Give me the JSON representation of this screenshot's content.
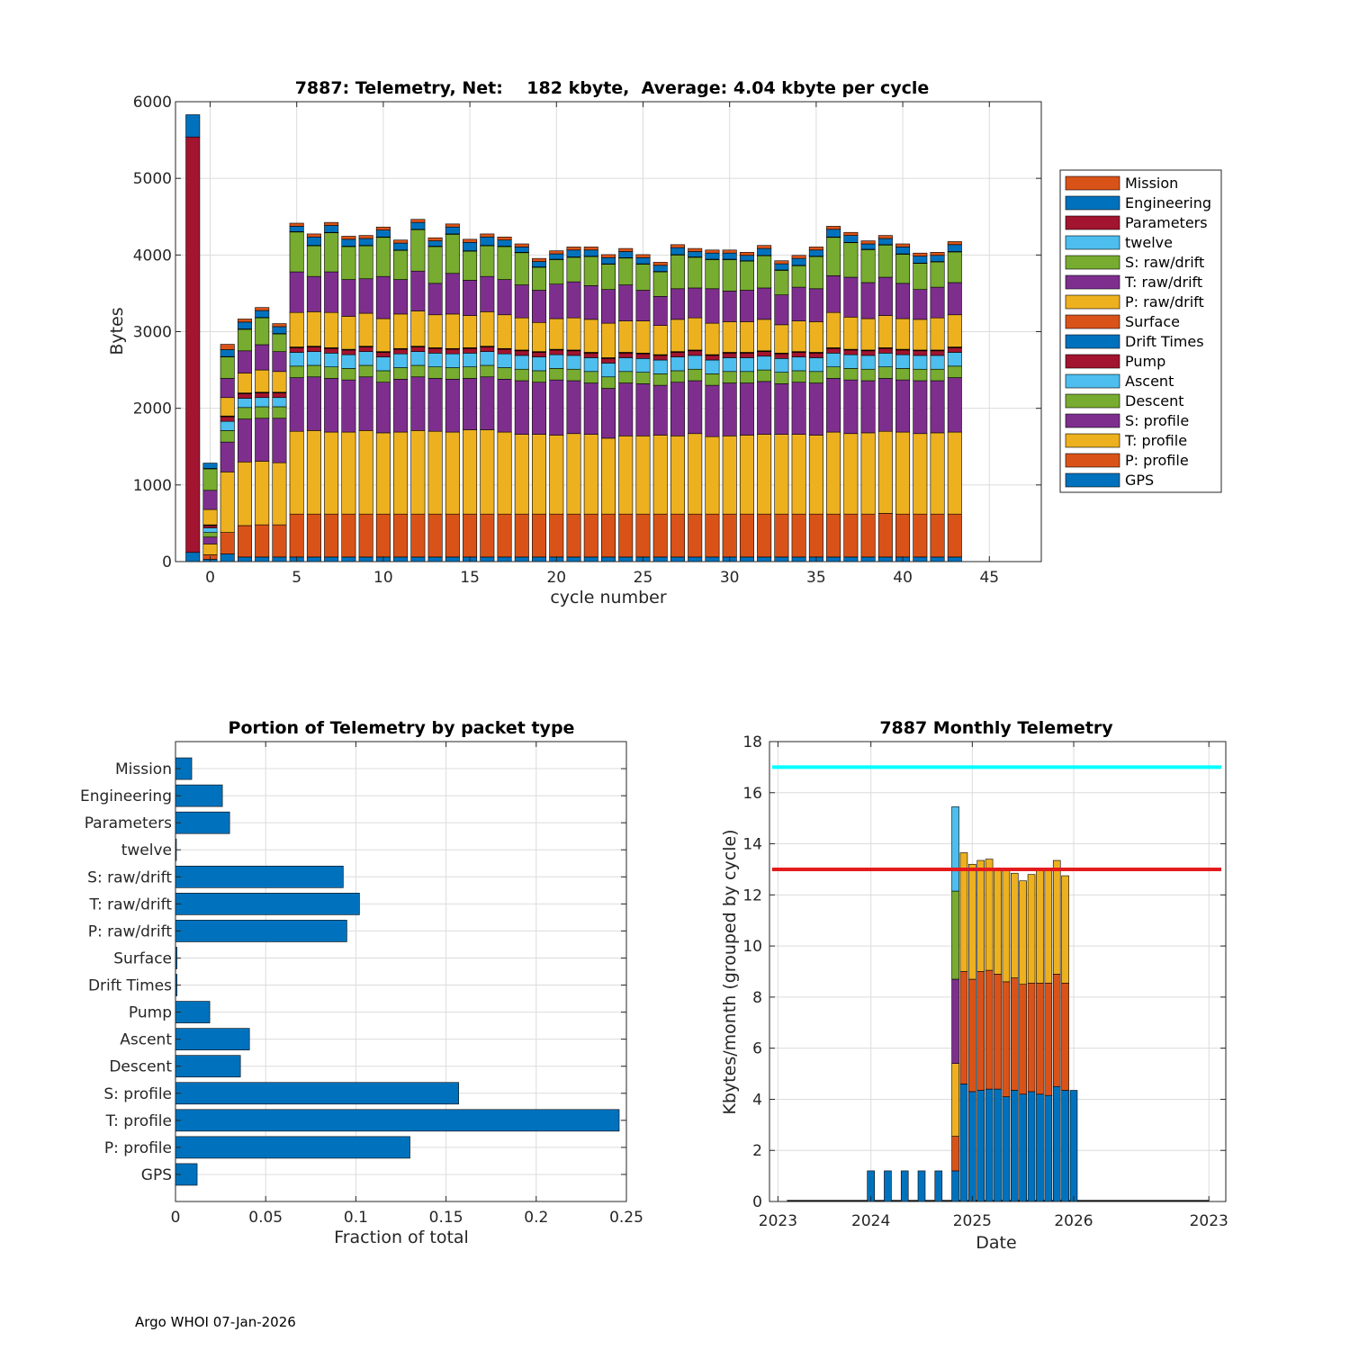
{
  "footer": "Argo WHOI 07-Jan-2026",
  "colors": {
    "Mission": "#D95319",
    "Engineering": "#0072BD",
    "Parameters": "#A2142F",
    "twelve": "#4DBEEE",
    "S: raw/drift": "#77AC30",
    "T: raw/drift": "#7E2F8E",
    "P: raw/drift": "#EDB120",
    "Surface": "#D95319",
    "Drift Times": "#0072BD",
    "Pump": "#A2142F",
    "Ascent": "#4DBEEE",
    "Descent": "#77AC30",
    "S: profile": "#7E2F8E",
    "T: profile": "#EDB120",
    "P: profile": "#D95319",
    "GPS": "#0072BD",
    "bar": "#0072BD",
    "cyan_line": "#00FFFF",
    "red_line": "#E41A1C"
  },
  "chart_data": [
    {
      "type": "bar",
      "stacked": true,
      "title": "7887: Telemetry, Net:    182 kbyte,  Average: 4.04 kbyte per cycle",
      "xlabel": "cycle number",
      "ylabel": "Bytes",
      "xlim": [
        -2,
        48
      ],
      "ylim": [
        0,
        6000
      ],
      "xticks": [
        0,
        5,
        10,
        15,
        20,
        25,
        30,
        35,
        40,
        45
      ],
      "yticks": [
        0,
        1000,
        2000,
        3000,
        4000,
        5000,
        6000
      ],
      "legend_location": "outside-right",
      "legend": [
        "Mission",
        "Engineering",
        "Parameters",
        "twelve",
        "S: raw/drift",
        "T: raw/drift",
        "P: raw/drift",
        "Surface",
        "Drift Times",
        "Pump",
        "Ascent",
        "Descent",
        "S: profile",
        "T: profile",
        "P: profile",
        "GPS"
      ],
      "stack_order": [
        "GPS",
        "P: profile",
        "T: profile",
        "S: profile",
        "Descent",
        "Ascent",
        "Pump",
        "Drift Times",
        "Surface",
        "P: raw/drift",
        "T: raw/drift",
        "S: raw/drift",
        "twelve",
        "Parameters",
        "Engineering",
        "Mission"
      ],
      "cycles": [
        -1,
        0,
        1,
        2,
        3,
        4,
        5,
        6,
        7,
        8,
        9,
        10,
        11,
        12,
        13,
        14,
        15,
        16,
        17,
        18,
        19,
        20,
        21,
        22,
        23,
        24,
        25,
        26,
        27,
        28,
        29,
        30,
        31,
        32,
        33,
        34,
        35,
        36,
        37,
        38,
        39,
        40,
        41,
        42,
        43
      ],
      "segments": {
        "GPS": [
          120,
          30,
          100,
          60,
          60,
          60,
          60,
          60,
          60,
          60,
          60,
          60,
          60,
          60,
          60,
          60,
          60,
          60,
          60,
          60,
          60,
          60,
          60,
          60,
          60,
          60,
          60,
          60,
          60,
          60,
          60,
          60,
          60,
          60,
          60,
          60,
          60,
          60,
          60,
          60,
          60,
          60,
          60,
          60,
          60
        ],
        "P: profile": [
          0,
          60,
          280,
          410,
          420,
          420,
          560,
          560,
          560,
          560,
          560,
          560,
          560,
          560,
          560,
          560,
          560,
          560,
          560,
          560,
          560,
          560,
          560,
          560,
          560,
          560,
          560,
          560,
          560,
          560,
          560,
          560,
          560,
          560,
          560,
          560,
          560,
          560,
          560,
          560,
          570,
          560,
          560,
          560,
          560
        ],
        "T: profile": [
          0,
          140,
          790,
          830,
          830,
          810,
          1080,
          1090,
          1070,
          1070,
          1090,
          1060,
          1070,
          1090,
          1080,
          1070,
          1100,
          1100,
          1070,
          1040,
          1040,
          1030,
          1050,
          1040,
          990,
          1020,
          1020,
          1030,
          1020,
          1050,
          1010,
          1020,
          1030,
          1040,
          1040,
          1040,
          1030,
          1070,
          1050,
          1060,
          1070,
          1070,
          1050,
          1060,
          1070
        ],
        "S: profile": [
          0,
          90,
          390,
          560,
          560,
          580,
          700,
          700,
          700,
          680,
          700,
          660,
          690,
          700,
          690,
          690,
          670,
          690,
          690,
          700,
          680,
          720,
          690,
          670,
          650,
          690,
          680,
          650,
          700,
          690,
          670,
          690,
          680,
          690,
          660,
          680,
          680,
          700,
          700,
          680,
          690,
          680,
          690,
          680,
          710
        ],
        "Descent": [
          0,
          60,
          150,
          150,
          150,
          150,
          150,
          150,
          150,
          150,
          150,
          150,
          150,
          150,
          150,
          150,
          150,
          150,
          150,
          150,
          150,
          150,
          150,
          150,
          150,
          150,
          150,
          150,
          150,
          150,
          150,
          150,
          150,
          150,
          150,
          150,
          150,
          150,
          150,
          150,
          150,
          150,
          150,
          150,
          150
        ],
        "Ascent": [
          0,
          60,
          120,
          120,
          120,
          120,
          180,
          180,
          180,
          180,
          180,
          180,
          180,
          180,
          180,
          180,
          180,
          180,
          180,
          180,
          180,
          180,
          180,
          180,
          180,
          180,
          180,
          180,
          180,
          180,
          180,
          180,
          180,
          180,
          180,
          180,
          180,
          180,
          180,
          180,
          180,
          180,
          180,
          180,
          180
        ],
        "Pump": [
          5420,
          30,
          60,
          60,
          60,
          60,
          60,
          60,
          60,
          60,
          60,
          60,
          60,
          60,
          60,
          60,
          60,
          60,
          60,
          60,
          60,
          60,
          60,
          60,
          60,
          60,
          60,
          60,
          60,
          60,
          60,
          60,
          60,
          60,
          60,
          60,
          60,
          60,
          60,
          60,
          60,
          60,
          60,
          60,
          60
        ],
        "Drift Times": [
          0,
          5,
          5,
          5,
          5,
          5,
          5,
          5,
          5,
          5,
          5,
          5,
          5,
          5,
          5,
          5,
          5,
          5,
          5,
          5,
          5,
          5,
          5,
          5,
          5,
          5,
          5,
          5,
          5,
          5,
          5,
          5,
          5,
          5,
          5,
          5,
          5,
          5,
          5,
          5,
          5,
          5,
          5,
          5,
          5
        ],
        "Surface": [
          0,
          5,
          5,
          5,
          5,
          5,
          5,
          5,
          5,
          5,
          5,
          5,
          5,
          5,
          5,
          5,
          5,
          5,
          5,
          5,
          5,
          5,
          5,
          5,
          5,
          5,
          5,
          5,
          5,
          5,
          5,
          5,
          5,
          5,
          5,
          5,
          5,
          5,
          5,
          5,
          5,
          5,
          5,
          5,
          5
        ],
        "P: raw/drift": [
          0,
          200,
          240,
          260,
          290,
          270,
          450,
          450,
          460,
          430,
          430,
          430,
          450,
          460,
          430,
          450,
          420,
          450,
          440,
          420,
          380,
          400,
          420,
          430,
          450,
          410,
          420,
          380,
          420,
          420,
          410,
          400,
          400,
          410,
          370,
          400,
          400,
          460,
          420,
          410,
          420,
          400,
          400,
          420,
          420
        ],
        "T: raw/drift": [
          0,
          250,
          250,
          290,
          330,
          260,
          530,
          460,
          530,
          480,
          450,
          550,
          450,
          520,
          410,
          530,
          460,
          460,
          460,
          430,
          420,
          450,
          470,
          440,
          440,
          470,
          400,
          380,
          400,
          390,
          450,
          400,
          410,
          410,
          390,
          440,
          430,
          480,
          520,
          470,
          500,
          460,
          390,
          400,
          420
        ],
        "S: raw/drift": [
          0,
          280,
          280,
          280,
          350,
          230,
          520,
          400,
          510,
          430,
          430,
          510,
          380,
          540,
          480,
          510,
          380,
          400,
          430,
          420,
          300,
          320,
          320,
          380,
          330,
          350,
          340,
          320,
          440,
          400,
          380,
          410,
          380,
          420,
          320,
          280,
          420,
          500,
          450,
          430,
          420,
          380,
          340,
          330,
          400
        ],
        "twelve": [
          0,
          5,
          5,
          5,
          5,
          5,
          5,
          5,
          5,
          5,
          5,
          5,
          5,
          5,
          5,
          5,
          5,
          5,
          5,
          5,
          5,
          5,
          5,
          5,
          5,
          5,
          5,
          5,
          5,
          5,
          5,
          5,
          5,
          5,
          5,
          5,
          5,
          5,
          5,
          5,
          5,
          5,
          5,
          5,
          5
        ],
        "Parameters": [
          0,
          0,
          0,
          0,
          0,
          0,
          0,
          0,
          0,
          0,
          0,
          0,
          0,
          0,
          0,
          0,
          0,
          0,
          0,
          0,
          0,
          0,
          0,
          0,
          0,
          0,
          0,
          0,
          0,
          0,
          0,
          0,
          0,
          0,
          0,
          0,
          0,
          0,
          0,
          0,
          0,
          0,
          0,
          0,
          0
        ],
        "Engineering": [
          290,
          70,
          90,
          90,
          90,
          90,
          70,
          110,
          90,
          90,
          90,
          90,
          90,
          90,
          70,
          90,
          110,
          110,
          80,
          70,
          70,
          70,
          90,
          80,
          80,
          80,
          80,
          80,
          90,
          70,
          80,
          80,
          70,
          90,
          80,
          90,
          80,
          100,
          90,
          70,
          80,
          90,
          90,
          80,
          90
        ],
        "Mission": [
          0,
          0,
          70,
          40,
          40,
          40,
          40,
          40,
          40,
          40,
          40,
          40,
          40,
          40,
          40,
          40,
          40,
          40,
          40,
          40,
          40,
          40,
          40,
          40,
          40,
          40,
          40,
          40,
          40,
          40,
          40,
          40,
          40,
          40,
          40,
          40,
          40,
          40,
          40,
          40,
          40,
          40,
          40,
          40,
          40
        ]
      }
    },
    {
      "type": "bar",
      "orientation": "horizontal",
      "title": "Portion of Telemetry by packet type",
      "xlabel": "Fraction of total",
      "xlim": [
        0,
        0.25
      ],
      "xticks": [
        0,
        0.05,
        0.1,
        0.15,
        0.2,
        0.25
      ],
      "xtick_labels": [
        "0",
        "0.05",
        "0.1",
        "0.15",
        "0.2",
        "0.25"
      ],
      "categories": [
        "Mission",
        "Engineering",
        "Parameters",
        "twelve",
        "S: raw/drift",
        "T: raw/drift",
        "P: raw/drift",
        "Surface",
        "Drift Times",
        "Pump",
        "Ascent",
        "Descent",
        "S: profile",
        "T: profile",
        "P: profile",
        "GPS"
      ],
      "values": [
        0.009,
        0.026,
        0.03,
        0.0005,
        0.093,
        0.102,
        0.095,
        0.0008,
        0.0008,
        0.019,
        0.041,
        0.036,
        0.157,
        0.246,
        0.13,
        0.012
      ]
    },
    {
      "type": "bar",
      "stacked": true,
      "title": "7887 Monthly Telemetry",
      "xlabel": "Date",
      "ylabel": "Kbytes/month (grouped by cycle)",
      "xlim": [
        0,
        54
      ],
      "ylim": [
        0,
        18
      ],
      "yticks": [
        0,
        2,
        4,
        6,
        8,
        10,
        12,
        14,
        16,
        18
      ],
      "xticks": [
        1,
        12,
        24,
        36,
        52
      ],
      "xtick_labels": [
        "2023",
        "2024",
        "2025",
        "2026",
        "2023"
      ],
      "hlines": [
        {
          "y": 17,
          "color": "cyan"
        },
        {
          "y": 13,
          "color": "red"
        }
      ],
      "months": [
        12,
        14,
        16,
        18,
        20,
        22,
        23,
        24,
        25,
        26,
        27,
        28,
        29,
        30,
        31,
        32,
        33,
        34,
        35,
        36,
        37
      ],
      "stack_order": [
        "GPS",
        "P: profile",
        "T: profile",
        "S: profile",
        "Descent",
        "Ascent"
      ],
      "segments": {
        "GPS": [
          1.2,
          1.2,
          1.2,
          1.2,
          1.2,
          1.2,
          4.6,
          4.3,
          4.35,
          4.4,
          4.4,
          4.1,
          4.35,
          4.2,
          4.3,
          4.2,
          4.15,
          4.5,
          4.35,
          4.35,
          0
        ],
        "P: profile": [
          0,
          0,
          0,
          0,
          0,
          1.35,
          4.4,
          4.4,
          4.65,
          4.65,
          4.5,
          4.5,
          4.4,
          4.3,
          4.25,
          4.35,
          4.4,
          4.4,
          4.2,
          0,
          0
        ],
        "T: profile": [
          0,
          0,
          0,
          0,
          0,
          2.85,
          4.65,
          4.5,
          4.35,
          4.35,
          4.05,
          4.4,
          4.1,
          4.05,
          4.25,
          4.5,
          4.5,
          4.45,
          4.2,
          0,
          0
        ],
        "S: profile": [
          0,
          0,
          0,
          0,
          0,
          3.3,
          0,
          0,
          0,
          0,
          0,
          0,
          0,
          0,
          0,
          0,
          0,
          0,
          0,
          0,
          0
        ],
        "Descent": [
          0,
          0,
          0,
          0,
          0,
          3.45,
          0,
          0,
          0,
          0,
          0,
          0,
          0,
          0,
          0,
          0,
          0,
          0,
          0,
          0,
          0
        ],
        "Ascent": [
          0,
          0,
          0,
          0,
          0,
          3.3,
          0,
          0,
          0,
          0,
          0,
          0,
          0,
          0,
          0,
          0,
          0,
          0,
          0,
          0,
          0
        ]
      }
    }
  ]
}
